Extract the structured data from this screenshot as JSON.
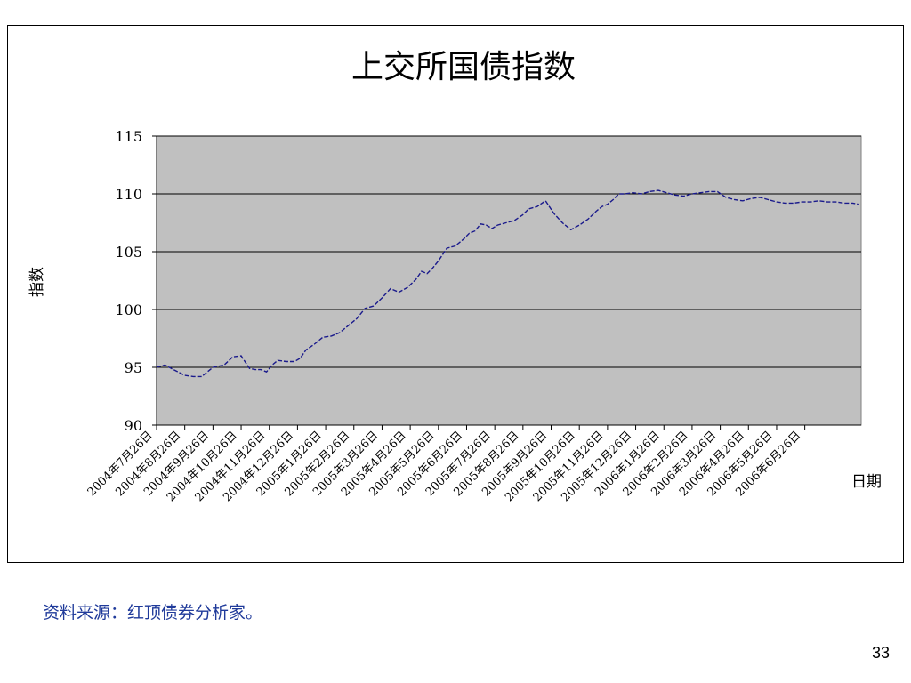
{
  "slide": {
    "source_note": "资料来源：红顶债券分析家。",
    "page_number": "33"
  },
  "colors": {
    "plot_background": "#c0c0c0",
    "series_line": "#1a1a8c",
    "gridline": "#000000",
    "source_text": "#1f3a9a"
  },
  "chart_data": {
    "type": "line",
    "title": "上交所国债指数",
    "xlabel": "日期",
    "ylabel": "指数",
    "ylim": [
      90,
      115
    ],
    "yticks": [
      90,
      95,
      100,
      105,
      110,
      115
    ],
    "grid": "horizontal",
    "line_style": "dashed",
    "x_labels": [
      "2004年7月26日",
      "2004年8月26日",
      "2004年9月26日",
      "2004年10月26日",
      "2004年11月26日",
      "2004年12月26日",
      "2005年1月26日",
      "2005年2月26日",
      "2005年3月26日",
      "2005年4月26日",
      "2005年5月26日",
      "2005年6月26日",
      "2005年7月26日",
      "2005年8月26日",
      "2005年9月26日",
      "2005年10月26日",
      "2005年11月26日",
      "2005年12月26日",
      "2006年1月26日",
      "2006年2月26日",
      "2006年3月26日",
      "2006年4月26日",
      "2006年5月26日",
      "2006年6月26日"
    ],
    "series": [
      {
        "name": "",
        "x": [
          0,
          0.3,
          0.6,
          1.0,
          1.3,
          1.6,
          2.0,
          2.4,
          2.7,
          3.0,
          3.3,
          3.5,
          3.7,
          3.9,
          4.1,
          4.3,
          4.6,
          4.9,
          5.1,
          5.3,
          5.6,
          5.9,
          6.2,
          6.5,
          6.8,
          7.1,
          7.4,
          7.7,
          8.0,
          8.3,
          8.6,
          8.9,
          9.2,
          9.4,
          9.6,
          9.8,
          10.0,
          10.3,
          10.6,
          10.9,
          11.1,
          11.3,
          11.5,
          11.7,
          11.9,
          12.1,
          12.4,
          12.7,
          13.0,
          13.2,
          13.5,
          13.8,
          14.1,
          14.4,
          14.7,
          15.0,
          15.3,
          15.6,
          15.8,
          16.0,
          16.2,
          16.4,
          16.6,
          16.9,
          17.2,
          17.5,
          17.8,
          18.1,
          18.4,
          18.7,
          19.0,
          19.3,
          19.6,
          19.9,
          20.2,
          20.5,
          20.8,
          21.1,
          21.4,
          21.7,
          22.0,
          22.3,
          22.6,
          22.9,
          23.2,
          23.5,
          23.8,
          24.1,
          24.4,
          24.7,
          24.9
        ],
        "y": [
          95.0,
          95.2,
          94.8,
          94.3,
          94.2,
          94.2,
          95.0,
          95.2,
          95.9,
          96.0,
          94.9,
          94.8,
          94.8,
          94.6,
          95.2,
          95.6,
          95.5,
          95.5,
          95.8,
          96.5,
          97.0,
          97.6,
          97.7,
          98.0,
          98.6,
          99.2,
          100.1,
          100.3,
          101.0,
          101.8,
          101.5,
          101.9,
          102.6,
          103.3,
          103.1,
          103.6,
          104.2,
          105.3,
          105.5,
          106.1,
          106.6,
          106.8,
          107.4,
          107.3,
          107.0,
          107.3,
          107.5,
          107.7,
          108.2,
          108.7,
          108.9,
          109.4,
          108.3,
          107.5,
          106.9,
          107.3,
          107.8,
          108.5,
          108.9,
          109.1,
          109.5,
          110.0,
          110.0,
          110.1,
          110.0,
          110.2,
          110.3,
          110.1,
          109.9,
          109.8,
          110.0,
          110.1,
          110.2,
          110.2,
          109.7,
          109.5,
          109.4,
          109.6,
          109.7,
          109.5,
          109.3,
          109.2,
          109.2,
          109.3,
          109.3,
          109.4,
          109.3,
          109.3,
          109.2,
          109.2,
          109.1
        ]
      }
    ]
  }
}
